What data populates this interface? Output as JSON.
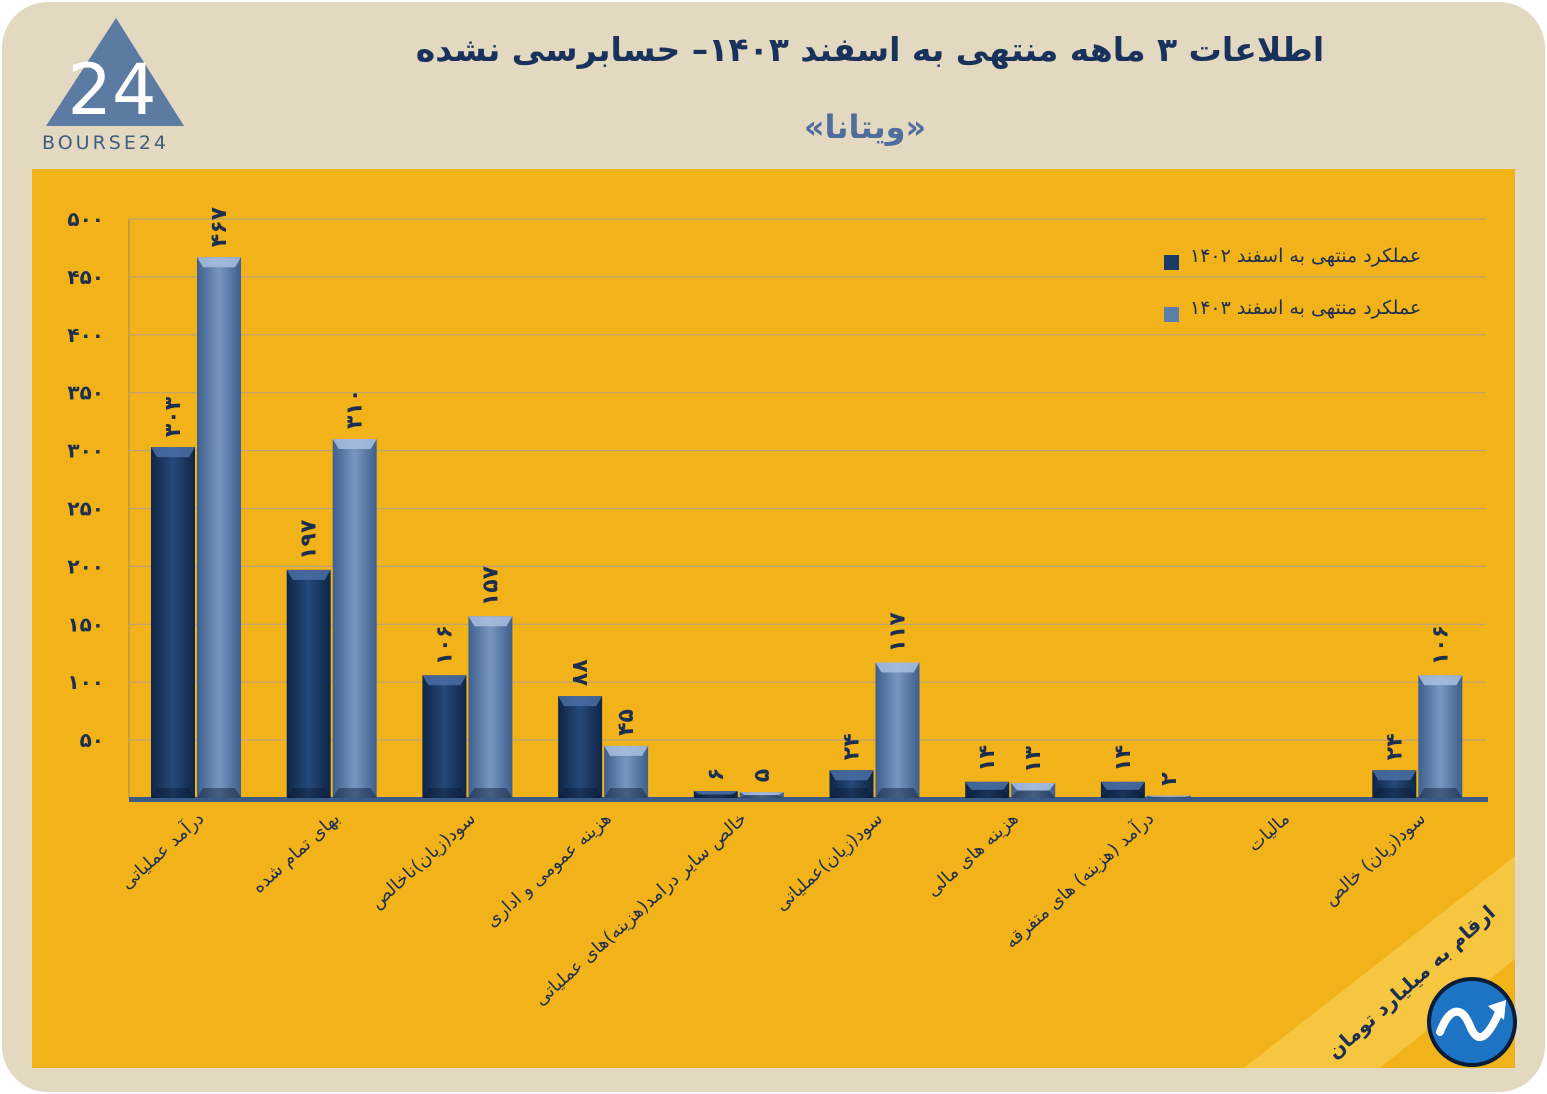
{
  "header": {
    "title": "اطلاعات ۳ ماهه منتهی به اسفند  ۱۴۰۳– حسابرسی نشده",
    "subtitle": "«ویتانا»",
    "logo_text": "BOURSE24",
    "logo_mark": "24"
  },
  "note": "ارقام به میلیارد تومان",
  "colors": {
    "background": "#e3d8c0",
    "panel": "#f2b31a",
    "series_1402": "#1b3a66",
    "series_1403": "#5d7fab",
    "text": "#1d2f4e"
  },
  "chart_data": {
    "type": "bar",
    "title": "اطلاعات ۳ ماهه منتهی به اسفند  ۱۴۰۳– حسابرسی نشده",
    "categories": [
      "درآمد عملیاتی",
      "بهای تمام شده",
      "سود(زیان)ناخالص",
      "هزینه عمومی و اداری",
      "خالص سایر درامد(هزینه)های عملیاتی",
      "سود(زیان)عملیاتی",
      "هزینه های مالی",
      "درآمد (هزینه) های متفرقه",
      "مالیات",
      "سود(زیان) خالص"
    ],
    "series": [
      {
        "name": "عملکرد منتهی به اسفند ۱۴۰۲",
        "values": [
          303,
          197,
          106,
          88,
          6,
          24,
          14,
          14,
          0,
          24
        ],
        "labels": [
          "۳۰۳",
          "۱۹۷",
          "۱۰۶",
          "۸۸",
          "۶",
          "۲۴",
          "۱۴",
          "۱۴",
          "",
          "۲۴"
        ]
      },
      {
        "name": "عملکرد منتهی به اسفند ۱۴۰۳",
        "values": [
          467,
          310,
          157,
          45,
          5,
          117,
          13,
          2,
          0,
          106
        ],
        "labels": [
          "۴۶۷",
          "۳۱۰",
          "۱۵۷",
          "۴۵",
          "۵",
          "۱۱۷",
          "۱۳",
          "۲",
          "",
          "۱۰۶"
        ]
      }
    ],
    "yticks": [
      50,
      100,
      150,
      200,
      250,
      300,
      350,
      400,
      450,
      500
    ],
    "ytick_labels": [
      "۵۰",
      "۱۰۰",
      "۱۵۰",
      "۲۰۰",
      "۲۵۰",
      "۳۰۰",
      "۳۵۰",
      "۴۰۰",
      "۴۵۰",
      "۵۰۰"
    ],
    "ylim": [
      0,
      500
    ],
    "grid": true,
    "legend_position": "top-right",
    "xlabel": "",
    "ylabel": ""
  }
}
